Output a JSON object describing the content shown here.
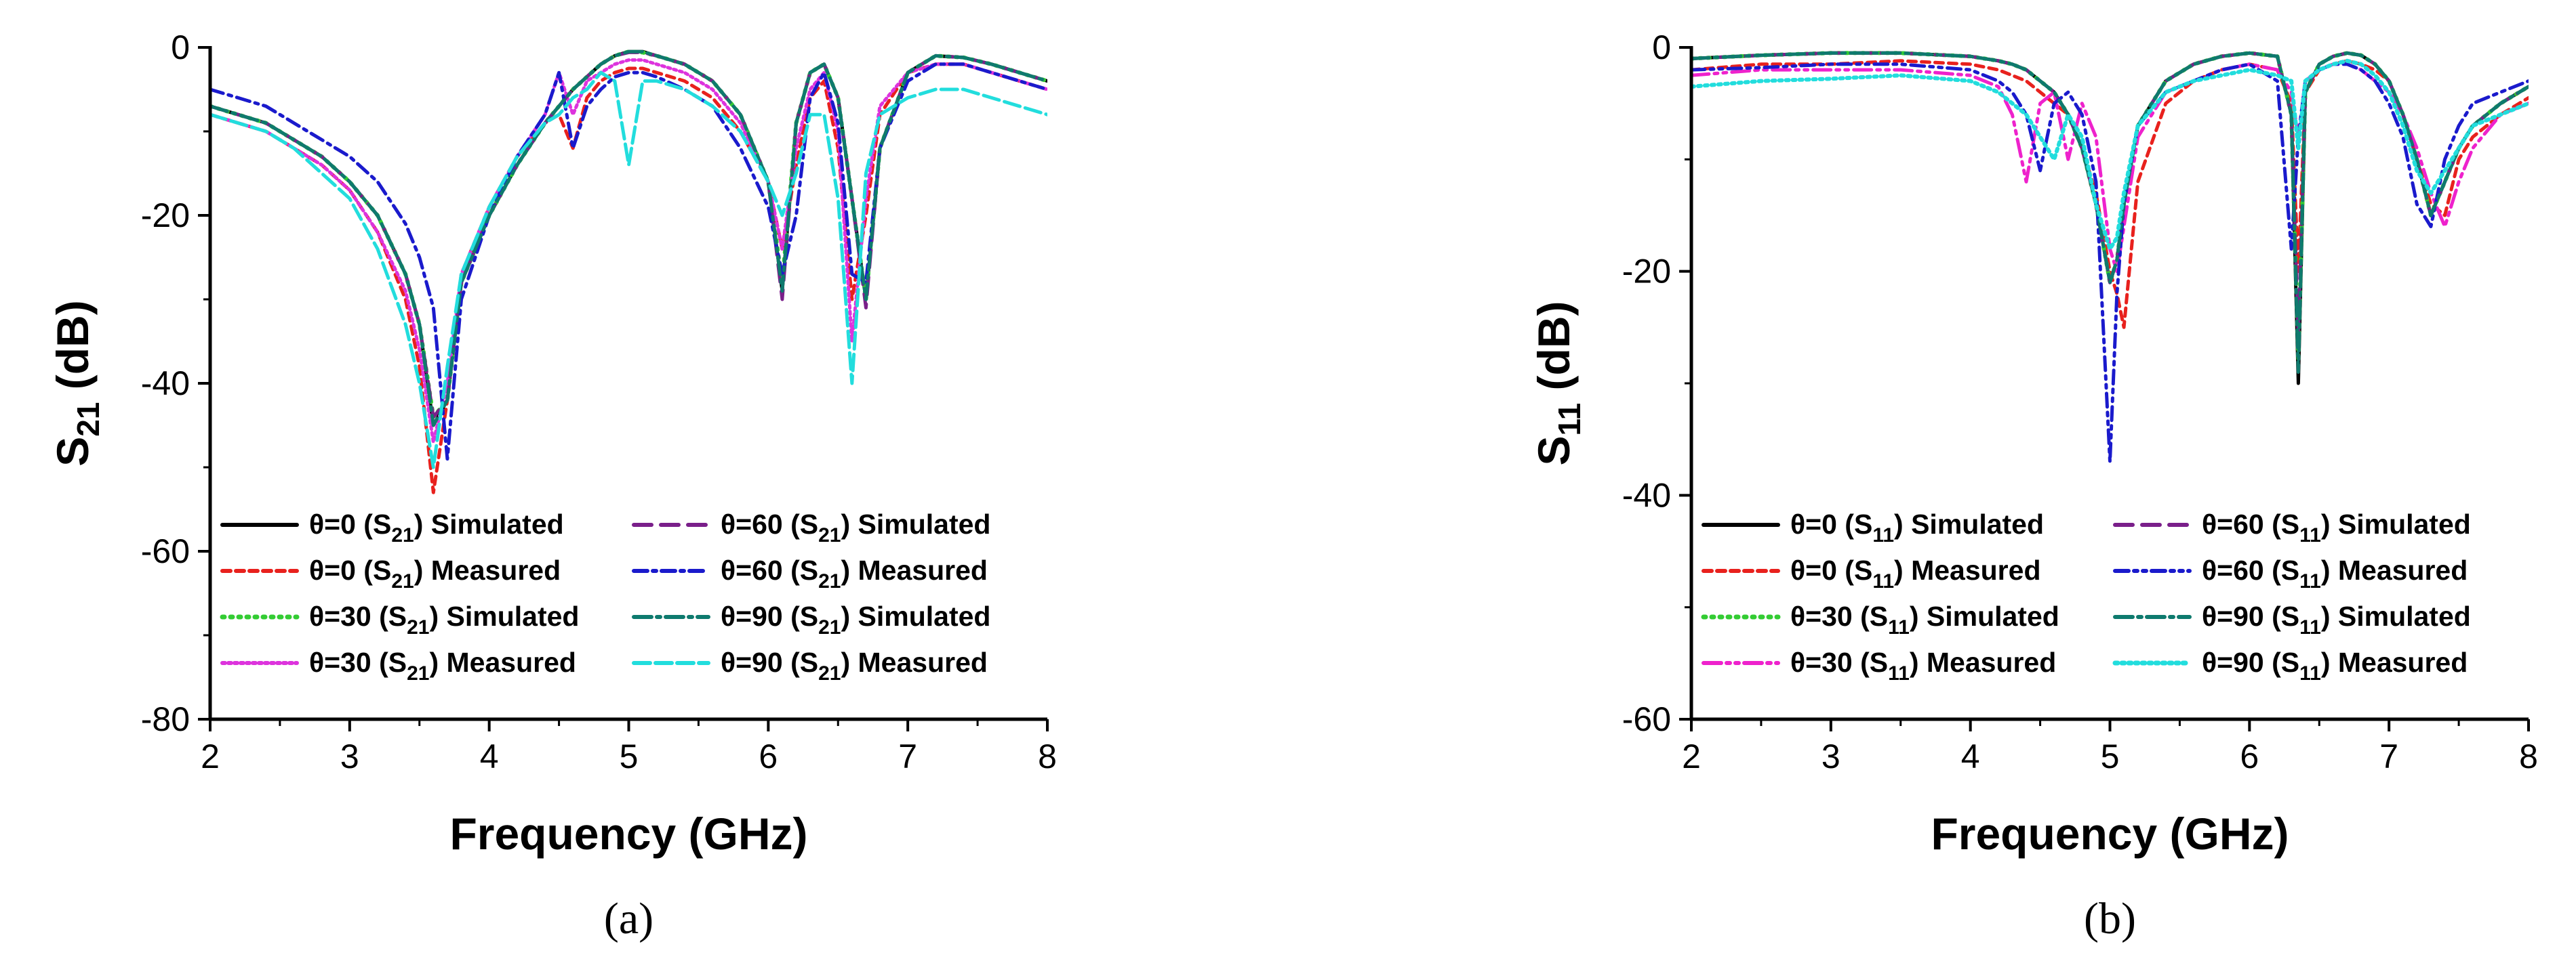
{
  "chart_data": [
    {
      "id": "a",
      "type": "line",
      "caption": "(a)",
      "xlabel": "Frequency (GHz)",
      "ylabel_main": "S",
      "ylabel_sub": "21",
      "ylabel_tail": " (dB)",
      "xlim": [
        2,
        8
      ],
      "ylim": [
        -80,
        0
      ],
      "xticks": [
        2,
        3,
        4,
        5,
        6,
        7,
        8
      ],
      "yticks": [
        0,
        -20,
        -40,
        -60,
        -80
      ],
      "x": [
        2.0,
        2.2,
        2.4,
        2.6,
        2.8,
        3.0,
        3.2,
        3.4,
        3.5,
        3.6,
        3.7,
        3.8,
        4.0,
        4.2,
        4.4,
        4.5,
        4.6,
        4.7,
        4.8,
        4.9,
        5.0,
        5.1,
        5.2,
        5.4,
        5.6,
        5.8,
        6.0,
        6.1,
        6.2,
        6.3,
        6.4,
        6.5,
        6.6,
        6.7,
        6.8,
        7.0,
        7.2,
        7.4,
        7.6,
        7.8,
        8.0
      ],
      "series": [
        {
          "name": "θ=0 (S21) Simulated",
          "legend_main": "θ=0 (S",
          "legend_sub": "21",
          "legend_tail": ") Simulated",
          "color": "#000000",
          "dash": "",
          "width": 5,
          "values": [
            -7,
            -8,
            -9,
            -11,
            -13,
            -16,
            -20,
            -27,
            -33,
            -45,
            -42,
            -28,
            -20,
            -14,
            -9,
            -7,
            -5,
            -3.5,
            -2,
            -1,
            -0.5,
            -0.5,
            -1,
            -2,
            -4,
            -8,
            -16,
            -29,
            -9,
            -3,
            -2,
            -6,
            -18,
            -30,
            -12,
            -3,
            -1,
            -1.2,
            -2,
            -3,
            -4
          ]
        },
        {
          "name": "θ=0 (S21) Measured",
          "legend_main": "θ=0 (S",
          "legend_sub": "21",
          "legend_tail": ") Measured",
          "color": "#e8211d",
          "dash": "12,8",
          "width": 5,
          "values": [
            -8,
            -9,
            -10,
            -12,
            -14,
            -17,
            -22,
            -30,
            -38,
            -53,
            -42,
            -27,
            -19,
            -13,
            -9,
            -8,
            -12,
            -6,
            -4,
            -3,
            -2.5,
            -2.5,
            -3,
            -4,
            -6,
            -10,
            -16,
            -24,
            -14,
            -6,
            -4,
            -12,
            -30,
            -20,
            -8,
            -3,
            -2,
            -2,
            -3,
            -4,
            -5
          ]
        },
        {
          "name": "θ=30 (S21) Simulated",
          "legend_main": "θ=30 (S",
          "legend_sub": "21",
          "legend_tail": ") Simulated",
          "color": "#33cc33",
          "dash": "3,9",
          "width": 6,
          "values": [
            -7,
            -8,
            -9,
            -11,
            -13,
            -16,
            -20,
            -27,
            -33,
            -44,
            -42,
            -28,
            -20,
            -14,
            -9,
            -7,
            -5,
            -3.5,
            -2,
            -1,
            -0.5,
            -0.6,
            -1,
            -2,
            -4,
            -8,
            -16,
            -28,
            -9,
            -3,
            -2,
            -6,
            -18,
            -30,
            -12,
            -3,
            -1,
            -1.2,
            -2,
            -3,
            -4
          ]
        },
        {
          "name": "θ=30 (S21) Measured",
          "legend_main": "θ=30 (S",
          "legend_sub": "21",
          "legend_tail": ") Measured",
          "color": "#dd33dd",
          "dash": "4,5",
          "width": 5,
          "values": [
            -8,
            -9,
            -10,
            -12,
            -14,
            -17,
            -22,
            -29,
            -36,
            -47,
            -40,
            -27,
            -19,
            -13,
            -8,
            -3,
            -8,
            -4,
            -3,
            -2,
            -1.5,
            -1.5,
            -2,
            -3,
            -5,
            -9,
            -16,
            -24,
            -12,
            -5,
            -3,
            -10,
            -35,
            -18,
            -7,
            -3,
            -2,
            -2,
            -3,
            -4,
            -5
          ]
        },
        {
          "name": "θ=60 (S21) Simulated",
          "legend_main": "θ=60 (S",
          "legend_sub": "21",
          "legend_tail": ") Simulated",
          "color": "#7a1f8a",
          "dash": "26,14",
          "width": 5,
          "values": [
            -7,
            -8,
            -9,
            -11,
            -13,
            -16,
            -20,
            -27,
            -33,
            -44,
            -42,
            -28,
            -20,
            -14,
            -9,
            -7,
            -5,
            -3.5,
            -2,
            -1,
            -0.6,
            -0.6,
            -1,
            -2,
            -4,
            -8,
            -16,
            -30,
            -9,
            -3,
            -2,
            -6,
            -18,
            -31,
            -12,
            -3,
            -1,
            -1.2,
            -2,
            -3,
            -4
          ]
        },
        {
          "name": "θ=60 (S21) Measured",
          "legend_main": "θ=60 (S",
          "legend_sub": "21",
          "legend_tail": ") Measured",
          "color": "#1a1acc",
          "dash": "20,8,5,8",
          "width": 5,
          "values": [
            -5,
            -6,
            -7,
            -9,
            -11,
            -13,
            -16,
            -21,
            -25,
            -31,
            -49,
            -30,
            -20,
            -13,
            -8,
            -3,
            -12,
            -7,
            -5,
            -3.5,
            -3,
            -3,
            -3.5,
            -5,
            -7,
            -12,
            -19,
            -27,
            -20,
            -6,
            -3,
            -9,
            -27,
            -28,
            -12,
            -4,
            -2,
            -2,
            -3,
            -4,
            -5
          ]
        },
        {
          "name": "θ=90 (S21) Simulated",
          "legend_main": "θ=90 (S",
          "legend_sub": "21",
          "legend_tail": ") Simulated",
          "color": "#0e7a6e",
          "dash": "26,8,5,8",
          "width": 5,
          "values": [
            -7,
            -8,
            -9,
            -11,
            -13,
            -16,
            -20,
            -27,
            -33,
            -45,
            -42,
            -28,
            -20,
            -14,
            -9,
            -7,
            -5,
            -3.5,
            -2,
            -1,
            -0.5,
            -0.5,
            -1,
            -2,
            -4,
            -8,
            -16,
            -29,
            -9,
            -3,
            -2,
            -6,
            -18,
            -30,
            -12,
            -3,
            -1,
            -1.2,
            -2,
            -3,
            -4
          ]
        },
        {
          "name": "θ=90 (S21) Measured",
          "legend_main": "θ=90 (S",
          "legend_sub": "21",
          "legend_tail": ") Measured",
          "color": "#22dddd",
          "dash": "24,8",
          "width": 5,
          "values": [
            -8,
            -9,
            -10,
            -12,
            -15,
            -18,
            -24,
            -33,
            -40,
            -50,
            -38,
            -27,
            -19,
            -13,
            -9,
            -8,
            -6,
            -5,
            -3,
            -4,
            -14,
            -4,
            -4,
            -5,
            -7,
            -10,
            -16,
            -20,
            -15,
            -8,
            -8,
            -18,
            -40,
            -15,
            -8,
            -6,
            -5,
            -5,
            -6,
            -7,
            -8
          ]
        }
      ],
      "legend_placement": "bottom-center"
    },
    {
      "id": "b",
      "type": "line",
      "caption": "(b)",
      "xlabel": "Frequency (GHz)",
      "ylabel_main": "S",
      "ylabel_sub": "11",
      "ylabel_tail": " (dB)",
      "xlim": [
        2,
        8
      ],
      "ylim": [
        -60,
        0
      ],
      "xticks": [
        2,
        3,
        4,
        5,
        6,
        7,
        8
      ],
      "yticks": [
        0,
        -20,
        -40,
        -60
      ],
      "x": [
        2.0,
        2.5,
        3.0,
        3.5,
        4.0,
        4.2,
        4.3,
        4.4,
        4.5,
        4.6,
        4.7,
        4.8,
        4.9,
        5.0,
        5.05,
        5.1,
        5.2,
        5.4,
        5.6,
        5.8,
        6.0,
        6.2,
        6.3,
        6.35,
        6.4,
        6.5,
        6.6,
        6.7,
        6.8,
        6.9,
        7.0,
        7.1,
        7.2,
        7.3,
        7.4,
        7.5,
        7.6,
        7.8,
        8.0
      ],
      "series": [
        {
          "name": "θ=0 (S11) Simulated",
          "legend_main": "θ=0 (S",
          "legend_sub": "11",
          "legend_tail": ") Simulated",
          "color": "#000000",
          "dash": "",
          "width": 5,
          "values": [
            -1,
            -0.7,
            -0.5,
            -0.5,
            -0.8,
            -1.2,
            -1.5,
            -2,
            -3,
            -4,
            -6,
            -9,
            -14,
            -21,
            -19,
            -14,
            -7,
            -3,
            -1.5,
            -0.8,
            -0.5,
            -0.8,
            -6,
            -30,
            -4,
            -1.5,
            -0.8,
            -0.5,
            -0.7,
            -1.5,
            -3,
            -6,
            -10,
            -15,
            -12,
            -9,
            -7,
            -5,
            -3.5
          ]
        },
        {
          "name": "θ=0 (S11) Measured",
          "legend_main": "θ=0 (S",
          "legend_sub": "11",
          "legend_tail": ") Measured",
          "color": "#e8211d",
          "dash": "12,8",
          "width": 5,
          "values": [
            -2,
            -1.5,
            -1.5,
            -1.2,
            -1.5,
            -2,
            -2.5,
            -3,
            -4,
            -5,
            -6,
            -9,
            -13,
            -20,
            -22,
            -25,
            -12,
            -5,
            -3,
            -2,
            -1.5,
            -2,
            -5,
            -20,
            -4,
            -2,
            -1.5,
            -1.2,
            -1.5,
            -2,
            -3,
            -6,
            -10,
            -14,
            -15,
            -10,
            -8,
            -6,
            -4.5
          ]
        },
        {
          "name": "θ=30 (S11) Simulated",
          "legend_main": "θ=30 (S",
          "legend_sub": "11",
          "legend_tail": ") Simulated",
          "color": "#33cc33",
          "dash": "3,9",
          "width": 6,
          "values": [
            -1,
            -0.7,
            -0.5,
            -0.5,
            -0.8,
            -1.2,
            -1.5,
            -2,
            -3,
            -4,
            -6,
            -9,
            -14,
            -21,
            -19,
            -14,
            -7,
            -3,
            -1.5,
            -0.8,
            -0.5,
            -0.8,
            -6,
            -28,
            -4,
            -1.5,
            -0.8,
            -0.5,
            -0.7,
            -1.5,
            -3,
            -6,
            -10,
            -15,
            -12,
            -9,
            -7,
            -5,
            -3.5
          ]
        },
        {
          "name": "θ=30 (S11) Measured",
          "legend_main": "θ=30 (S",
          "legend_sub": "11",
          "legend_tail": ") Measured",
          "color": "#ee22cc",
          "dash": "26,8,5,8,5,8",
          "width": 5,
          "values": [
            -2.5,
            -2,
            -2,
            -2,
            -2.5,
            -3.5,
            -6,
            -12,
            -5,
            -4,
            -10,
            -5,
            -8,
            -18,
            -20,
            -16,
            -8,
            -4,
            -3,
            -2,
            -1.5,
            -2,
            -4,
            -8,
            -3,
            -2,
            -1.5,
            -1.5,
            -2,
            -3,
            -4,
            -6,
            -9,
            -13,
            -16,
            -12,
            -9,
            -6,
            -5
          ]
        },
        {
          "name": "θ=60 (S11) Simulated",
          "legend_main": "θ=60 (S",
          "legend_sub": "11",
          "legend_tail": ") Simulated",
          "color": "#7a1f8a",
          "dash": "26,14",
          "width": 5,
          "values": [
            -1,
            -0.7,
            -0.5,
            -0.5,
            -0.8,
            -1.2,
            -1.5,
            -2,
            -3,
            -4,
            -6,
            -9,
            -14,
            -21,
            -19,
            -14,
            -7,
            -3,
            -1.5,
            -0.8,
            -0.5,
            -0.8,
            -6,
            -26,
            -4,
            -1.5,
            -0.8,
            -0.5,
            -0.7,
            -1.5,
            -3,
            -6,
            -10,
            -15,
            -12,
            -9,
            -7,
            -5,
            -3.5
          ]
        },
        {
          "name": "θ=60 (S11) Measured",
          "legend_main": "θ=60 (S",
          "legend_sub": "11",
          "legend_tail": ") Measured",
          "color": "#1a1acc",
          "dash": "20,8,5,8,5,8",
          "width": 5,
          "values": [
            -2,
            -1.8,
            -1.5,
            -1.5,
            -2,
            -3,
            -4,
            -6,
            -11,
            -5,
            -4,
            -6,
            -12,
            -37,
            -22,
            -14,
            -7,
            -4,
            -3,
            -2,
            -1.5,
            -3,
            -18,
            -8,
            -3,
            -2,
            -1.5,
            -1.5,
            -2,
            -3,
            -5,
            -8,
            -14,
            -16,
            -10,
            -7,
            -5,
            -4,
            -3
          ]
        },
        {
          "name": "θ=90 (S11) Simulated",
          "legend_main": "θ=90 (S",
          "legend_sub": "11",
          "legend_tail": ") Simulated",
          "color": "#0e7a6e",
          "dash": "26,8,5,8",
          "width": 5,
          "values": [
            -1,
            -0.7,
            -0.5,
            -0.5,
            -0.8,
            -1.2,
            -1.5,
            -2,
            -3,
            -4,
            -6,
            -9,
            -14,
            -21,
            -19,
            -14,
            -7,
            -3,
            -1.5,
            -0.8,
            -0.5,
            -0.8,
            -6,
            -29,
            -4,
            -1.5,
            -0.8,
            -0.5,
            -0.7,
            -1.5,
            -3,
            -6,
            -10,
            -15,
            -12,
            -9,
            -7,
            -5,
            -3.5
          ]
        },
        {
          "name": "θ=90 (S11) Measured",
          "legend_main": "θ=90 (S",
          "legend_sub": "11",
          "legend_tail": ") Measured",
          "color": "#22dddd",
          "dash": "4,6",
          "width": 6,
          "values": [
            -3.5,
            -3,
            -2.8,
            -2.5,
            -3,
            -4,
            -5,
            -6,
            -8,
            -10,
            -6,
            -8,
            -14,
            -18,
            -17,
            -13,
            -7,
            -4,
            -3,
            -2.5,
            -2,
            -2.5,
            -3,
            -9,
            -3,
            -2,
            -1.5,
            -1.2,
            -1.5,
            -2.5,
            -4,
            -7,
            -11,
            -13,
            -11,
            -9,
            -7,
            -6,
            -5
          ]
        }
      ],
      "legend_placement": "bottom-center"
    }
  ]
}
